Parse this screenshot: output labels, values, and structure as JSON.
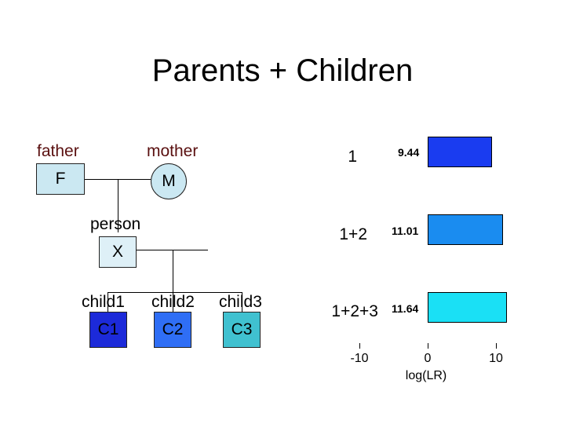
{
  "title": "Parents + Children",
  "pedigree": {
    "father_label": "father",
    "father_box": "F",
    "mother_label": "mother",
    "mother_box": "M",
    "person_label": "person",
    "person_box": "X",
    "children": [
      {
        "label": "child1",
        "box": "C1",
        "color": "#1c2ad9"
      },
      {
        "label": "child2",
        "box": "C2",
        "color": "#2f6ef5"
      },
      {
        "label": "child3",
        "box": "C3",
        "color": "#40c1d0"
      }
    ],
    "colors": {
      "father": "#cbe8f2",
      "mother": "#cbe8f2",
      "person": "#def0f7"
    }
  },
  "chart_data": {
    "type": "bar",
    "categories": [
      "1",
      "1+2",
      "1+2+3"
    ],
    "values": [
      9.44,
      11.01,
      11.64
    ],
    "value_labels": [
      "9.44",
      "11.01",
      "11.64"
    ],
    "colors": [
      "#1a3cf0",
      "#1a8cf0",
      "#1ae0f5"
    ],
    "xlabel": "log(LR)",
    "xticks": [
      "-10",
      "0",
      "10"
    ],
    "xlim": [
      -10,
      10
    ]
  }
}
